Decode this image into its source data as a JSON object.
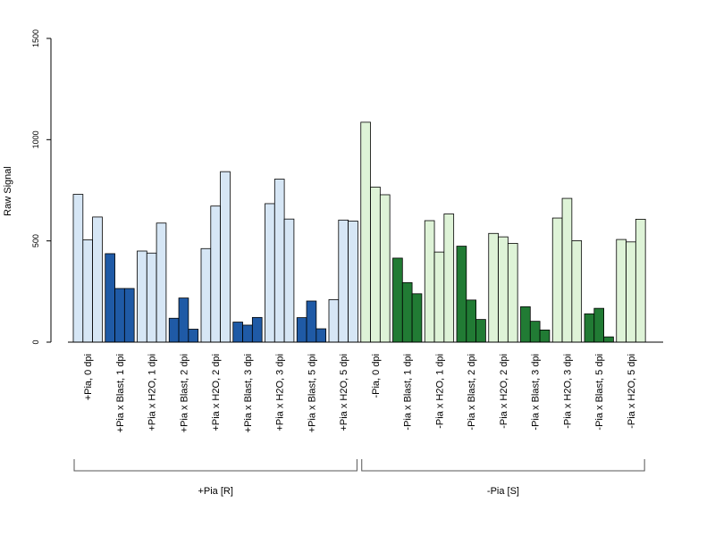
{
  "chart_data": {
    "type": "bar",
    "ylabel": "Raw Signal",
    "ylim": [
      0,
      1500
    ],
    "yticks": [
      0,
      500,
      1000,
      1500
    ],
    "grid": false,
    "bars_per_category": 3,
    "colors": {
      "plus_control": "#d6e6f5",
      "plus_blast": "#1f5aa6",
      "minus_control": "#def3d7",
      "minus_blast": "#217b34",
      "border": "#000000"
    },
    "categories": [
      {
        "label": "+Pia, 0 dpi",
        "values": [
          730,
          505,
          618
        ],
        "color": "plus_control"
      },
      {
        "label": "+Pia x Blast, 1 dpi",
        "values": [
          437,
          265,
          265
        ],
        "color": "plus_blast"
      },
      {
        "label": "+Pia x H2O, 1 dpi",
        "values": [
          450,
          440,
          588
        ],
        "color": "plus_control"
      },
      {
        "label": "+Pia x Blast, 2 dpi",
        "values": [
          118,
          218,
          64
        ],
        "color": "plus_blast"
      },
      {
        "label": "+Pia x H2O, 2 dpi",
        "values": [
          462,
          672,
          842
        ],
        "color": "plus_control"
      },
      {
        "label": "+Pia x Blast, 3 dpi",
        "values": [
          99,
          84,
          122
        ],
        "color": "plus_blast"
      },
      {
        "label": "+Pia x H2O, 3 dpi",
        "values": [
          684,
          805,
          608
        ],
        "color": "plus_control"
      },
      {
        "label": "+Pia x Blast, 5 dpi",
        "values": [
          121,
          203,
          66
        ],
        "color": "plus_blast"
      },
      {
        "label": "+Pia x H2O, 5 dpi",
        "values": [
          210,
          603,
          598
        ],
        "color": "plus_control"
      },
      {
        "label": "-Pia, 0 dpi",
        "values": [
          1086,
          766,
          728
        ],
        "color": "minus_control"
      },
      {
        "label": "-Pia x Blast, 1 dpi",
        "values": [
          415,
          294,
          239
        ],
        "color": "minus_blast"
      },
      {
        "label": "-Pia x H2O, 1 dpi",
        "values": [
          600,
          445,
          633
        ],
        "color": "minus_control"
      },
      {
        "label": "-Pia x Blast, 2 dpi",
        "values": [
          474,
          208,
          112
        ],
        "color": "minus_blast"
      },
      {
        "label": "-Pia x H2O, 2 dpi",
        "values": [
          537,
          520,
          488
        ],
        "color": "minus_control"
      },
      {
        "label": "-Pia x Blast, 3 dpi",
        "values": [
          175,
          103,
          60
        ],
        "color": "minus_blast"
      },
      {
        "label": "-Pia x H2O, 3 dpi",
        "values": [
          613,
          710,
          501
        ],
        "color": "minus_control"
      },
      {
        "label": "-Pia x Blast, 5 dpi",
        "values": [
          140,
          167,
          26
        ],
        "color": "minus_blast"
      },
      {
        "label": "-Pia x H2O, 5 dpi",
        "values": [
          507,
          495,
          607
        ],
        "color": "minus_control"
      }
    ],
    "groups": [
      {
        "label": "+Pia [R]",
        "first_category": 0,
        "last_category": 8
      },
      {
        "label": "-Pia [S]",
        "first_category": 9,
        "last_category": 17
      }
    ]
  }
}
